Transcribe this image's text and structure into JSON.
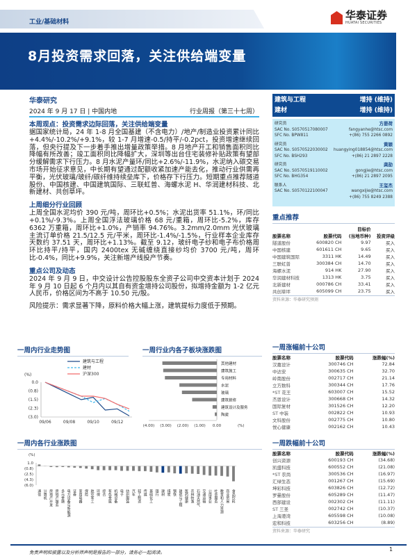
{
  "header": {
    "category": "工业/基础材料",
    "logo_cn": "华泰证券",
    "logo_en": "HUATAI SECURITIES",
    "title": "8月投资需求回落，关注供给端变量"
  },
  "meta": {
    "org": "华泰研究",
    "date": "2024 年 9 月 17 日 | 中国内地",
    "report_type": "行业周报（第三十七周）"
  },
  "ratings": [
    {
      "sector": "建筑与工程",
      "rating": "增持 (维持)"
    },
    {
      "sector": "建材",
      "rating": "增持 (维持)"
    }
  ],
  "analysts": [
    {
      "role": "研究员",
      "name": "方晏荷",
      "sac": "SAC No. S0570517080007",
      "sfc": "SFC No. BPW811",
      "email": "fangyanhe@htsc.com",
      "phone": "+(86) 755 2266 0892"
    },
    {
      "role": "研究员",
      "name": "黄颖",
      "sac": "SAC No. S0570522030002",
      "sfc": "SFC No. BSH293",
      "email": "huangying018854@htsc.com",
      "phone": "+(86) 21 2897 2228"
    },
    {
      "role": "研究员",
      "name": "龚劼",
      "sac": "SAC No. S0570519110002",
      "sfc": "SFC No. BHG354",
      "email": "gongjie@htsc.com",
      "phone": "+(86) 21 2897 2095"
    },
    {
      "role": "联系人",
      "name": "王玺杰",
      "sac": "SAC No. S0570122100047",
      "sfc": "",
      "email": "wangxijie@htsc.com",
      "phone": "+(86) 755 8249 2388"
    }
  ],
  "sections": {
    "view_title": "本周观点：投资需求边际回落，关注供给端变量",
    "view_text": "据国家统计局，24 年 1-8 月全国基建（不含电力）/地产/制造业投资累计同比+4.4%/-10.2%/+9.1%，较 1-7 月增速-0.5/持平/-0.2pct，投资增速继续回落，但央行提及下一步着手推出增量政策举措。8 月地产开工和销售面积同比降幅有所改善；竣工面积同比降幅扩大，深圳等出台住宅装修补贴政策有望部分缓解需求下行压力。8 月水泥产量环/同比+2.6%/-11.9%，水泥纳入碳交易市场开始征求意见，中长期有望通过配额收紧加速产能去化，推动行业供需再平衡，光伏玻璃/玻纤/碳纤维持续垒库下，价格存下行压力。短期重点推荐隧道股份、中国核建、中国建筑国际、三联虹普、海螺水泥 H、华润建材科技、北新建材、共创草坪。",
    "review_title": "上周细分行业回顾",
    "review_text": "上周全国水泥均价 390 元/吨，周环比+0.5%；水泥出货率 51.1%，环/同比+0.1%/-9.3%。上周全国浮法玻璃价格 68 元/重箱，周环比-5.2%，库存 6362 万重箱，周环比+1.0%，产销率 94.76%。3.2mm/2.0mm 光伏玻璃主流订单价格 21.5/12.5 元/平米，周环比-1.4%/-1.5%，行业样本企业库存天数约 37.51 天，周环比+1.13%。截至 9.12，玻纤电子纱和电子布价格周环比持平/持平，国内 2400tex 无碱缠绕直接纱均价 3700 元/吨，周环比-0.4%，同比+9.9%，关注新增产线投产节奏。",
    "company_title": "重点公司及动态",
    "company_text": "2024 年 9 月 9 日，中交设计公告控股股东全资子公司中交资本计划于 2024 年 9 月 10 日起 6 个月内以其自有资金增持公司股份，拟增持金额为 1-2 亿元人民币，价格区间为不高于 10.50 元/股。",
    "risk": "风险提示：需求显著下降，原料价格大幅上涨，建筑提标力度低于预期。"
  },
  "picks": {
    "title": "重点推荐",
    "headers": [
      "股票名称",
      "股票代码",
      "目标价 (当地币种)",
      "投资评级"
    ],
    "header_top": "目标价",
    "header_bot": "(当地币种)",
    "rows": [
      [
        "隧道股份",
        "600820 CH",
        "9.97",
        "买入"
      ],
      [
        "中国核建",
        "601611 CH",
        "9.65",
        "买入"
      ],
      [
        "中国建筑国际",
        "3311 HK",
        "14.49",
        "买入"
      ],
      [
        "三联虹普",
        "300384 CH",
        "14.70",
        "买入"
      ],
      [
        "海螺水泥",
        "914 HK",
        "27.90",
        "买入"
      ],
      [
        "华润建材科技",
        "1313 HK",
        "3.75",
        "买入"
      ],
      [
        "北新建材",
        "000786 CH",
        "33.41",
        "买入"
      ],
      [
        "共创草坪",
        "605099 CH",
        "23.75",
        "买入"
      ]
    ],
    "source": "资料来源：华泰研究预测"
  },
  "gainers": {
    "title": "一周涨幅前十公司",
    "headers": [
      "股票名称",
      "股票代码",
      "涨跌幅(%)"
    ],
    "rows": [
      [
        "汉嘉设计",
        "300746 CH",
        "72.84"
      ],
      [
        "中达安",
        "300635 CH",
        "32.70"
      ],
      [
        "岭南股份",
        "002717 CH",
        "21.14"
      ],
      [
        "立方数科",
        "300344 CH",
        "17.76"
      ],
      [
        "*ST 花王",
        "603007 CH",
        "15.52"
      ],
      [
        "杰恩设计",
        "300668 CH",
        "14.32"
      ],
      [
        "国际复材",
        "301526 CH",
        "12.20"
      ],
      [
        "ST 中装",
        "002822 CH",
        "10.93"
      ],
      [
        "文科股份",
        "002775 CH",
        "10.80"
      ],
      [
        "悦心健康",
        "002162 CH",
        "10.43"
      ]
    ]
  },
  "losers": {
    "title": "一周跌幅前十公司",
    "headers": [
      "股票名称",
      "股票代码",
      "涨跌幅(%)"
    ],
    "rows": [
      [
        "创兴资源",
        "600193 CH",
        "(34.68)"
      ],
      [
        "凯盛科技",
        "600552 CH",
        "(21.08)"
      ],
      [
        "*ST 农尚",
        "300536 CH",
        "(16.97)"
      ],
      [
        "汇绿生态",
        "001267 CH",
        "(15.69)"
      ],
      [
        "坤彩科技",
        "603826 CH",
        "(12.72)"
      ],
      [
        "罗曼股份",
        "605289 CH",
        "(11.47)"
      ],
      [
        "西部建设",
        "002302 CH",
        "(11.11)"
      ],
      [
        "ST 三圣",
        "002742 CH",
        "(10.37)"
      ],
      [
        "上海港湾",
        "605598 CH",
        "(10.08)"
      ],
      [
        "宏和科技",
        "603256 CH",
        "(8.89)"
      ]
    ],
    "source": "资料来源：华泰研究"
  },
  "footer": {
    "disclaimer": "免责声明和披露以及分析师声明是报告的一部分，请务必一起阅读。",
    "page": "1"
  },
  "chart_data": [
    {
      "type": "line",
      "title": "一周内行业走势图",
      "ylabel": "(%)",
      "ylim": [
        -3.0,
        0.0
      ],
      "yticks": [
        "0.0",
        "(0.8)",
        "(1.5)",
        "(2.3)",
        "(3.0)"
      ],
      "xticks": [
        "09/06",
        "09/08",
        "09/10",
        "09/12"
      ],
      "x": [
        "09/06",
        "09/07",
        "09/08",
        "09/09",
        "09/10",
        "09/11",
        "09/12",
        "09/13"
      ],
      "series": [
        {
          "name": "建筑与工程",
          "color": "#1d4a8a",
          "values": [
            0,
            -0.5,
            -1.0,
            -1.5,
            -1.3,
            -2.4,
            -2.3,
            -2.9
          ]
        },
        {
          "name": "建材",
          "color": "#3fb8ec",
          "values": [
            0,
            -0.4,
            -0.8,
            -1.2,
            -1.75,
            -1.4,
            -1.9,
            -2.5
          ]
        },
        {
          "name": "沪深300",
          "color": "#f26b6b",
          "values": [
            0,
            -0.4,
            -0.8,
            -1.2,
            -1.2,
            -1.4,
            -1.9,
            -2.3
          ]
        }
      ]
    },
    {
      "type": "bar",
      "orientation": "horizontal",
      "title": "一周行业内各子板块涨跌图",
      "xlabel": "(%)",
      "xlim": [
        -4,
        0
      ],
      "xticks": [
        "(4.00)",
        "(3.00)",
        "(2.00)",
        "(1.00)",
        "0.00"
      ],
      "color": "#7f7f7f",
      "categories": [
        "其他建材",
        "建筑施工",
        "专用材料",
        "水泥",
        "玻璃",
        "建筑装修",
        "建筑设计及服务",
        "陶瓷"
      ],
      "values": [
        -3.2,
        -3.15,
        -3.05,
        -2.2,
        -2.05,
        -1.45,
        -0.25,
        -0.12
      ]
    },
    {
      "type": "bar",
      "title": "一周内各行业涨跌图",
      "ylabel": "(%)",
      "ylim": [
        -6.0,
        1.0
      ],
      "yticks": [
        "1.0",
        "(0.8)",
        "(2.5)",
        "(4.3)",
        "(6.0)"
      ],
      "color": "#7f7f7f",
      "highlight_color": "#0e3f86",
      "highlight": [
        "建材",
        "建筑与工程"
      ],
      "categories": [
        "通信",
        "计算机",
        "房地产开发",
        "房地产服务",
        "多元金融",
        "电力设备与新能源",
        "证券",
        "家用电器",
        "保险",
        "航空军工",
        "环保",
        "综合",
        "有色金属",
        "机械设备",
        "电子",
        "纺织服装",
        "汽车",
        "轻工制造",
        "传媒",
        "基础化工",
        "银行",
        "建材",
        "煤炭",
        "钢铁",
        "建筑与工程",
        "医药健康",
        "农林牧渔",
        "石油天然气",
        "交通运输",
        "公用事业",
        "社会服务",
        "教育和人力资源",
        "商业贸易",
        "食品饮料"
      ],
      "values": [
        0.5,
        -0.05,
        -0.3,
        -0.35,
        -0.3,
        -0.4,
        -0.5,
        -0.6,
        -0.8,
        -1.0,
        -1.3,
        -1.3,
        -1.3,
        -1.3,
        -1.5,
        -1.5,
        -1.5,
        -1.6,
        -1.6,
        -1.8,
        -2.0,
        -2.1,
        -2.0,
        -2.3,
        -2.4,
        -2.3,
        -2.4,
        -2.5,
        -2.8,
        -3.0,
        -3.0,
        -3.1,
        -3.3,
        -4.8
      ]
    }
  ]
}
